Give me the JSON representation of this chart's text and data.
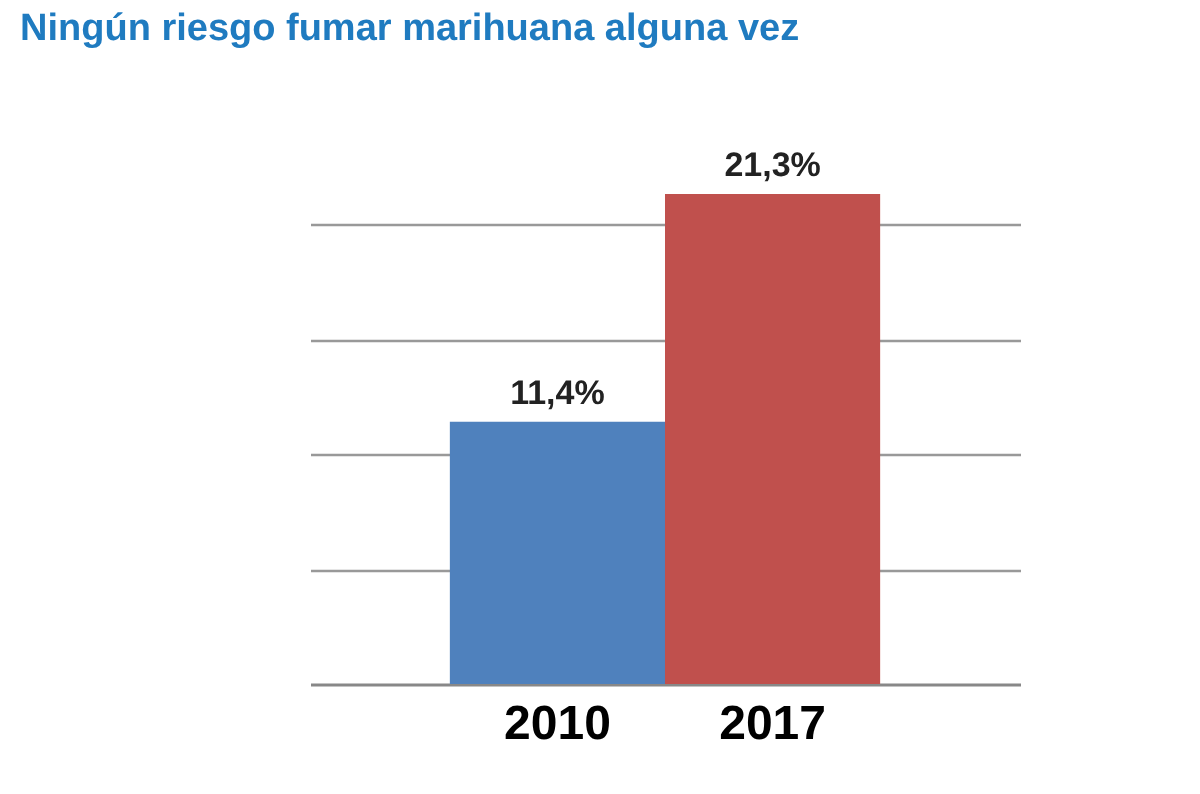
{
  "chart_data": {
    "type": "bar",
    "title": "Ningún riesgo fumar marihuana alguna vez",
    "categories": [
      "2010",
      "2017"
    ],
    "values": [
      11.4,
      21.3
    ],
    "colors": [
      "#4f81bd",
      "#c0504d"
    ],
    "value_labels": [
      "11,4%",
      "21,3%"
    ],
    "yticks": [
      {
        "value": 5,
        "label": null
      },
      {
        "value": 10,
        "label": null
      },
      {
        "value": 15,
        "label": null
      },
      {
        "value": 20,
        "label": null
      }
    ],
    "grid": "y",
    "tick_labels": "x"
  }
}
